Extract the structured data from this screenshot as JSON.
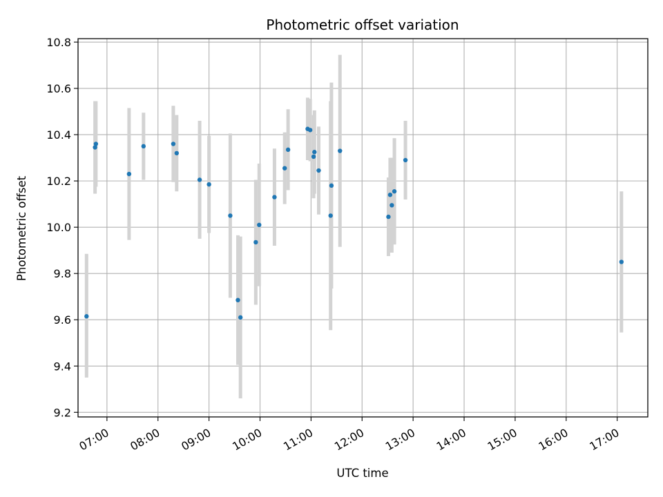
{
  "chart_data": {
    "type": "scatter",
    "title": "Photometric offset variation",
    "xlabel": "UTC time",
    "ylabel": "Photometric offset",
    "xlim": [
      "06:26",
      "17:36"
    ],
    "ylim": [
      9.18,
      10.815
    ],
    "x_ticks": [
      "07:00",
      "08:00",
      "09:00",
      "10:00",
      "11:00",
      "12:00",
      "13:00",
      "14:00",
      "15:00",
      "16:00",
      "17:00"
    ],
    "y_ticks": [
      "9.2",
      "9.4",
      "9.6",
      "9.8",
      "10.0",
      "10.2",
      "10.4",
      "10.6",
      "10.8"
    ],
    "grid": true,
    "legend": "none",
    "colors": {
      "points": "#1f77b4",
      "errorbars": "#d3d3d3",
      "grid": "#b0b0b0",
      "axes": "#000000"
    },
    "series": [
      {
        "marker": "point",
        "points": [
          {
            "x": "06:36",
            "y": 9.615,
            "low": 9.35,
            "high": 9.885
          },
          {
            "x": "06:46",
            "y": 10.345,
            "low": 10.145,
            "high": 10.545
          },
          {
            "x": "06:47",
            "y": 10.36,
            "low": 10.175,
            "high": 10.545
          },
          {
            "x": "07:26",
            "y": 10.23,
            "low": 9.945,
            "high": 10.515
          },
          {
            "x": "07:43",
            "y": 10.35,
            "low": 10.205,
            "high": 10.495
          },
          {
            "x": "08:18",
            "y": 10.36,
            "low": 10.195,
            "high": 10.525
          },
          {
            "x": "08:22",
            "y": 10.32,
            "low": 10.155,
            "high": 10.485
          },
          {
            "x": "08:49",
            "y": 10.205,
            "low": 9.95,
            "high": 10.46
          },
          {
            "x": "09:00",
            "y": 10.185,
            "low": 9.975,
            "high": 10.395
          },
          {
            "x": "09:25",
            "y": 10.05,
            "low": 9.695,
            "high": 10.405
          },
          {
            "x": "09:34",
            "y": 9.685,
            "low": 9.405,
            "high": 9.965
          },
          {
            "x": "09:37",
            "y": 9.61,
            "low": 9.26,
            "high": 9.96
          },
          {
            "x": "09:55",
            "y": 9.935,
            "low": 9.665,
            "high": 10.205
          },
          {
            "x": "09:59",
            "y": 10.01,
            "low": 9.745,
            "high": 10.275
          },
          {
            "x": "10:17",
            "y": 10.13,
            "low": 9.92,
            "high": 10.34
          },
          {
            "x": "10:29",
            "y": 10.255,
            "low": 10.1,
            "high": 10.41
          },
          {
            "x": "10:33",
            "y": 10.335,
            "low": 10.16,
            "high": 10.51
          },
          {
            "x": "10:56",
            "y": 10.425,
            "low": 10.29,
            "high": 10.56
          },
          {
            "x": "10:59",
            "y": 10.42,
            "low": 10.285,
            "high": 10.555
          },
          {
            "x": "11:03",
            "y": 10.305,
            "low": 10.125,
            "high": 10.485
          },
          {
            "x": "11:04",
            "y": 10.325,
            "low": 10.145,
            "high": 10.505
          },
          {
            "x": "11:09",
            "y": 10.245,
            "low": 10.055,
            "high": 10.435
          },
          {
            "x": "11:23",
            "y": 10.05,
            "low": 9.555,
            "high": 10.545
          },
          {
            "x": "11:24",
            "y": 10.18,
            "low": 9.735,
            "high": 10.625
          },
          {
            "x": "11:34",
            "y": 10.33,
            "low": 9.915,
            "high": 10.745
          },
          {
            "x": "12:31",
            "y": 10.045,
            "low": 9.875,
            "high": 10.215
          },
          {
            "x": "12:33",
            "y": 10.14,
            "low": 9.98,
            "high": 10.3
          },
          {
            "x": "12:35",
            "y": 10.095,
            "low": 9.89,
            "high": 10.3
          },
          {
            "x": "12:38",
            "y": 10.155,
            "low": 9.925,
            "high": 10.385
          },
          {
            "x": "12:51",
            "y": 10.29,
            "low": 10.12,
            "high": 10.46
          },
          {
            "x": "17:05",
            "y": 9.85,
            "low": 9.545,
            "high": 10.155
          }
        ]
      }
    ]
  }
}
